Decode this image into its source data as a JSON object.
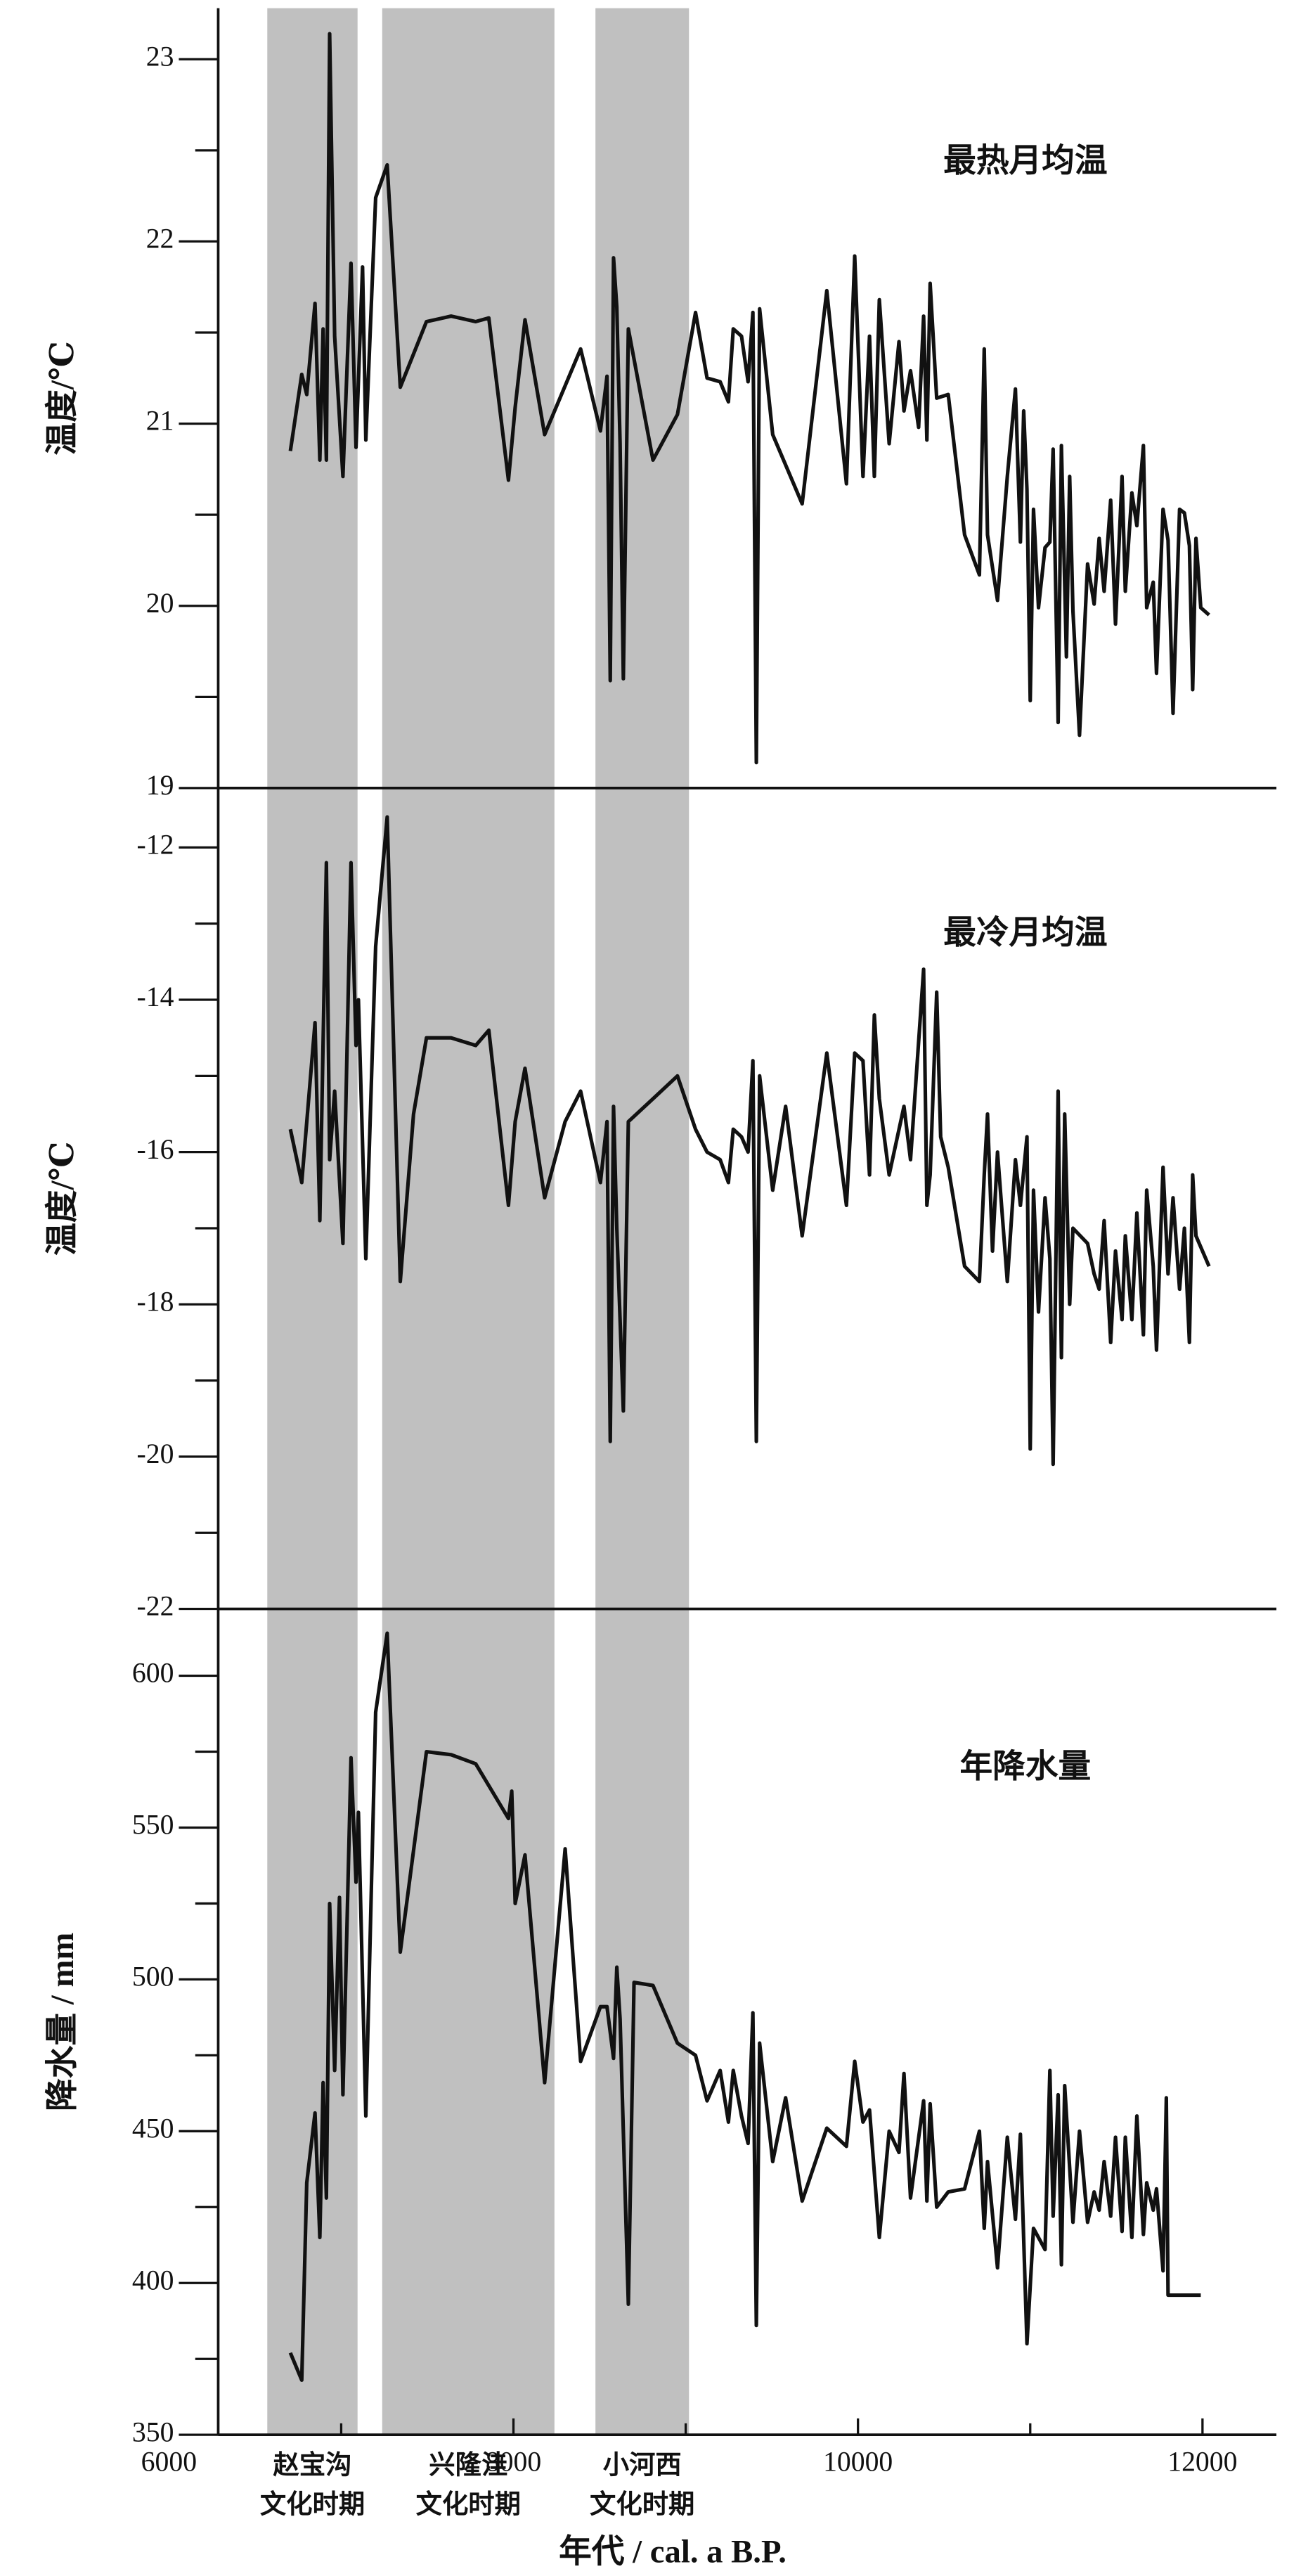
{
  "x_axis": {
    "label": "年代 / cal. a B.P.",
    "xlim": [
      6286,
      12429
    ],
    "xticks": [
      6000,
      8000,
      10000,
      12000
    ],
    "xminorticks": [
      7000,
      9000,
      11000
    ]
  },
  "periods": [
    {
      "name": "赵宝沟",
      "sub": "文化时期",
      "start": 6571,
      "end": 7095
    },
    {
      "name": "兴隆洼",
      "sub": "文化时期",
      "start": 7238,
      "end": 8238
    },
    {
      "name": "小河西",
      "sub": "文化时期",
      "start": 8476,
      "end": 9019
    }
  ],
  "chart_data": [
    {
      "type": "line",
      "title": "最热月均温",
      "ylabel": "温度/℃",
      "color": "#111111",
      "ylim": [
        19,
        23.28
      ],
      "yticks": [
        19,
        20,
        21,
        22,
        23
      ],
      "yminorticks": [
        19.5,
        20.5,
        21.5,
        22.5
      ],
      "x": [
        6705,
        6771,
        6800,
        6848,
        6876,
        6895,
        6914,
        6933,
        6962,
        7010,
        7057,
        7086,
        7124,
        7143,
        7200,
        7267,
        7343,
        7495,
        7638,
        7781,
        7857,
        7971,
        8010,
        8067,
        8181,
        8390,
        8505,
        8543,
        8562,
        8581,
        8600,
        8619,
        8638,
        8667,
        8810,
        8952,
        9057,
        9124,
        9200,
        9248,
        9276,
        9324,
        9362,
        9390,
        9410,
        9429,
        9505,
        9676,
        9819,
        9933,
        9981,
        10029,
        10067,
        10095,
        10124,
        10181,
        10238,
        10267,
        10305,
        10352,
        10381,
        10400,
        10419,
        10457,
        10524,
        10619,
        10705,
        10733,
        10752,
        10810,
        10867,
        10914,
        10943,
        10962,
        10981,
        11000,
        11019,
        11048,
        11086,
        11114,
        11133,
        11162,
        11181,
        11210,
        11229,
        11248,
        11286,
        11333,
        11371,
        11400,
        11429,
        11467,
        11495,
        11533,
        11552,
        11590,
        11619,
        11657,
        11676,
        11714,
        11733,
        11771,
        11800,
        11829,
        11867,
        11895,
        11924,
        11943,
        11962,
        11990,
        12038
      ],
      "values": [
        20.85,
        21.27,
        21.16,
        21.66,
        20.8,
        21.52,
        20.8,
        23.14,
        21.48,
        20.71,
        21.88,
        20.87,
        21.86,
        20.91,
        22.24,
        22.42,
        21.2,
        21.56,
        21.59,
        21.56,
        21.58,
        20.69,
        21.09,
        21.57,
        20.94,
        21.41,
        20.96,
        21.26,
        19.59,
        21.91,
        21.64,
        20.89,
        19.6,
        21.52,
        20.8,
        21.05,
        21.61,
        21.25,
        21.23,
        21.12,
        21.52,
        21.48,
        21.23,
        21.61,
        19.14,
        21.63,
        20.94,
        20.56,
        21.73,
        20.67,
        21.92,
        20.71,
        21.48,
        20.71,
        21.68,
        20.89,
        21.45,
        21.07,
        21.29,
        20.98,
        21.59,
        20.91,
        21.77,
        21.14,
        21.16,
        20.39,
        20.17,
        21.41,
        20.39,
        20.03,
        20.71,
        21.19,
        20.35,
        21.07,
        20.64,
        19.48,
        20.53,
        19.99,
        20.32,
        20.35,
        20.86,
        19.36,
        20.88,
        19.72,
        20.71,
        19.97,
        19.29,
        20.23,
        20.01,
        20.37,
        20.08,
        20.58,
        19.9,
        20.71,
        20.08,
        20.62,
        20.44,
        20.88,
        19.99,
        20.13,
        19.63,
        20.53,
        20.36,
        19.41,
        20.53,
        20.51,
        20.33,
        19.54,
        20.37,
        19.99,
        19.95
      ]
    },
    {
      "type": "line",
      "title": "最冷月均温",
      "ylabel": "温度/℃",
      "color": "#111111",
      "ylim": [
        -22,
        -11.22
      ],
      "yticks": [
        -22,
        -20,
        -18,
        -16,
        -14,
        -12
      ],
      "yminorticks": [
        -21,
        -19,
        -17,
        -15,
        -13
      ],
      "x": [
        6705,
        6771,
        6848,
        6876,
        6914,
        6933,
        6962,
        7010,
        7057,
        7086,
        7100,
        7143,
        7200,
        7267,
        7343,
        7420,
        7495,
        7638,
        7781,
        7857,
        7971,
        8010,
        8067,
        8181,
        8300,
        8390,
        8505,
        8543,
        8562,
        8581,
        8600,
        8638,
        8667,
        8810,
        8952,
        9057,
        9124,
        9200,
        9248,
        9276,
        9324,
        9362,
        9390,
        9410,
        9429,
        9505,
        9580,
        9676,
        9819,
        9933,
        9981,
        10029,
        10067,
        10095,
        10124,
        10181,
        10267,
        10305,
        10381,
        10400,
        10419,
        10457,
        10480,
        10524,
        10619,
        10705,
        10733,
        10752,
        10781,
        10810,
        10867,
        10914,
        10943,
        10981,
        11000,
        11019,
        11048,
        11086,
        11114,
        11133,
        11162,
        11181,
        11200,
        11229,
        11248,
        11333,
        11371,
        11400,
        11429,
        11467,
        11495,
        11533,
        11552,
        11590,
        11619,
        11657,
        11676,
        11714,
        11733,
        11771,
        11800,
        11829,
        11867,
        11895,
        11924,
        11943,
        11962,
        12038
      ],
      "values": [
        -15.7,
        -16.4,
        -14.3,
        -16.9,
        -12.2,
        -16.1,
        -15.2,
        -17.2,
        -12.2,
        -14.6,
        -14.0,
        -17.4,
        -13.3,
        -11.6,
        -17.7,
        -15.5,
        -14.5,
        -14.5,
        -14.6,
        -14.4,
        -16.7,
        -15.6,
        -14.9,
        -16.6,
        -15.6,
        -15.2,
        -16.4,
        -15.6,
        -19.8,
        -15.4,
        -17.0,
        -19.4,
        -15.6,
        -15.3,
        -15.0,
        -15.7,
        -16.0,
        -16.1,
        -16.4,
        -15.7,
        -15.8,
        -16.0,
        -14.8,
        -19.8,
        -15.0,
        -16.5,
        -15.4,
        -17.1,
        -14.7,
        -16.7,
        -14.7,
        -14.8,
        -16.3,
        -14.2,
        -15.3,
        -16.3,
        -15.4,
        -16.1,
        -13.6,
        -16.7,
        -16.3,
        -13.9,
        -15.8,
        -16.2,
        -17.5,
        -17.7,
        -16.3,
        -15.5,
        -17.3,
        -16.0,
        -17.7,
        -16.1,
        -16.7,
        -15.8,
        -19.9,
        -16.5,
        -18.1,
        -16.6,
        -17.4,
        -20.1,
        -15.2,
        -18.7,
        -15.5,
        -18.0,
        -17.0,
        -17.2,
        -17.6,
        -17.8,
        -16.9,
        -18.5,
        -17.3,
        -18.2,
        -17.1,
        -18.2,
        -16.8,
        -18.4,
        -16.5,
        -17.5,
        -18.6,
        -16.2,
        -17.6,
        -16.6,
        -17.8,
        -17.0,
        -18.5,
        -16.3,
        -17.1,
        -17.5
      ]
    },
    {
      "type": "line",
      "title": "年降水量",
      "ylabel": "降水量 / mm",
      "color": "#111111",
      "ylim": [
        350,
        622
      ],
      "yticks": [
        350,
        400,
        450,
        500,
        550,
        600
      ],
      "yminorticks": [
        375,
        425,
        475,
        525,
        575
      ],
      "x": [
        6705,
        6771,
        6800,
        6848,
        6876,
        6895,
        6914,
        6933,
        6962,
        6990,
        7010,
        7057,
        7086,
        7100,
        7143,
        7200,
        7267,
        7343,
        7495,
        7638,
        7781,
        7971,
        7990,
        8010,
        8067,
        8181,
        8300,
        8390,
        8505,
        8543,
        8581,
        8600,
        8619,
        8667,
        8700,
        8810,
        8952,
        9057,
        9124,
        9200,
        9248,
        9276,
        9324,
        9362,
        9390,
        9410,
        9429,
        9505,
        9580,
        9676,
        9819,
        9933,
        9981,
        10029,
        10067,
        10124,
        10181,
        10238,
        10267,
        10305,
        10381,
        10400,
        10419,
        10457,
        10524,
        10619,
        10705,
        10733,
        10752,
        10810,
        10867,
        10914,
        10943,
        10981,
        11019,
        11086,
        11114,
        11133,
        11162,
        11181,
        11200,
        11248,
        11286,
        11333,
        11371,
        11400,
        11429,
        11467,
        11495,
        11533,
        11552,
        11590,
        11619,
        11657,
        11676,
        11714,
        11733,
        11771,
        11790,
        11800,
        11990
      ],
      "values": [
        377,
        368,
        433,
        456,
        415,
        466,
        428,
        525,
        470,
        527,
        462,
        573,
        532,
        555,
        455,
        588,
        614,
        509,
        575,
        574,
        571,
        553,
        562,
        525,
        541,
        466,
        543,
        473,
        491,
        491,
        474,
        504,
        487,
        393,
        499,
        498,
        479,
        475,
        460,
        470,
        453,
        470,
        455,
        446,
        489,
        386,
        479,
        440,
        461,
        427,
        451,
        445,
        473,
        453,
        457,
        415,
        450,
        443,
        469,
        428,
        460,
        427,
        459,
        425,
        430,
        431,
        450,
        418,
        440,
        405,
        448,
        421,
        449,
        380,
        418,
        411,
        470,
        422,
        462,
        406,
        465,
        420,
        450,
        420,
        430,
        424,
        440,
        422,
        448,
        417,
        448,
        415,
        455,
        416,
        433,
        424,
        431,
        404,
        461,
        396,
        396
      ]
    }
  ]
}
